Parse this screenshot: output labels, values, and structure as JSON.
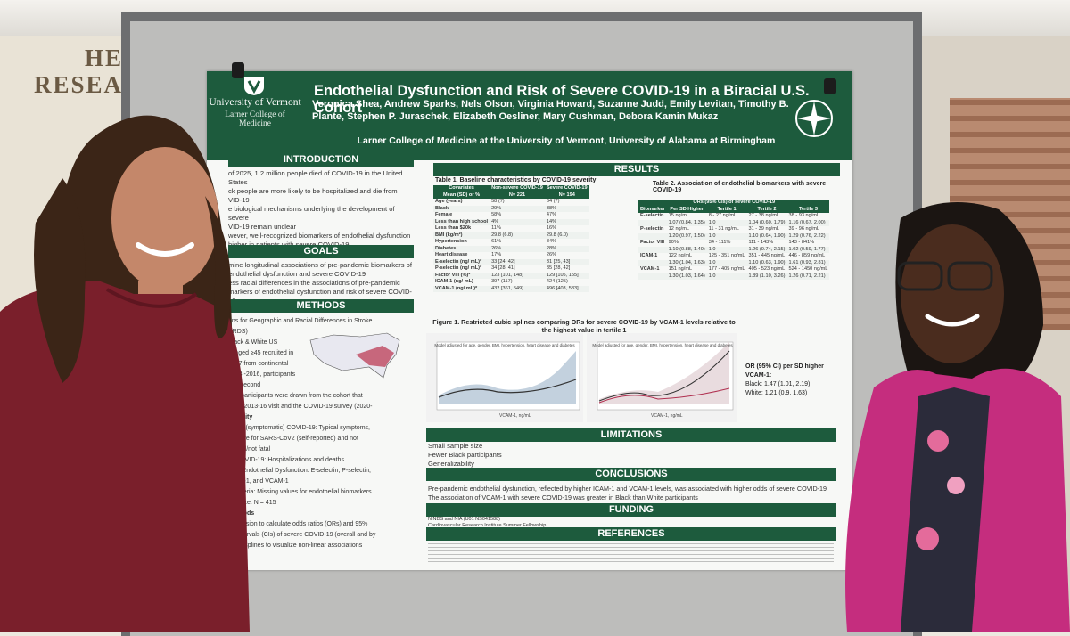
{
  "scene": {
    "wall_sign": "HE\nRESEA"
  },
  "poster": {
    "university": "University of Vermont",
    "college": "Larner College of Medicine",
    "title": "Endothelial Dysfunction and Risk of Severe COVID-19 in a Biracial U.S. Cohort",
    "authors": "Veronica Shea, Andrew Sparks, Nels Olson, Virginia Howard, Suzanne Judd, Emily Levitan, Timothy B. Plante, Stephen P. Juraschek, Elizabeth Oesliner, Mary Cushman, Debora Kamin Mukaz",
    "affiliation": "Larner College of Medicine at the University of Vermont, University of Alabama at Birmingham",
    "sections": {
      "introduction": "INTRODUCTION",
      "goals": "GOALS",
      "methods": "METHODS",
      "results": "RESULTS",
      "limitations": "LIMITATIONS",
      "conclusions": "CONCLUSIONS",
      "funding": "FUNDING",
      "references": "REFERENCES"
    },
    "intro_lines": [
      "of 2025, 1.2 million people died of COVID-19 in the United",
      "States",
      "ck people are more likely to be hospitalized and die from",
      "VID-19",
      "e biological mechanisms underlying the development of severe",
      "VID-19 remain unclear",
      "wever, well-recognized biomarkers of endothelial dysfunction",
      "higher in patients with severe COVID-19"
    ],
    "goals_lines": [
      "mine longitudinal associations of pre-pandemic biomarkers of",
      "endothelial dysfunction and severe COVID-19",
      "ess racial differences in the associations of pre-pandemic",
      "markers of endothelial dysfunction and risk of severe COVID-19"
    ],
    "methods_lines": [
      "ons for Geographic and Racial Differences in Stroke",
      "ARDS)",
      "Black & White US",
      "ts aged ≥45 recruited in",
      "2007 from continental",
      "2013 -2016, participants",
      "nt a second",
      "dy's participants were drawn from the cohort that",
      "d the 2013-16 visit and the COVID-19 survey (2020-",
      "Severity",
      "evere (symptomatic) COVID-19: Typical symptoms,",
      "positive for SARS-CoV2 (self-reported) and not",
      "talized/not fatal",
      "re COVID-19: Hospitalizations and deaths",
      "rs of Endothelial Dysfunction: E-selectin, P-selectin,",
      "ICAM-1, and VCAM-1",
      "n Criteria: Missing values for endothelial biomarkers",
      "ple Size: N = 415",
      "methods",
      "regression to calculate odds ratios (ORs) and 95%",
      "ce intervals (CIs) of severe COVID-19 (overall and by",
      "cubic splines to visualize non-linear associations"
    ],
    "table1": {
      "title": "Table 1. Baseline characteristics by COVID-19 severity",
      "headers": [
        "Covariates\nMean (SD) or %",
        "Non-severe COVID-19\nN= 221",
        "Severe COVID-19\nN= 194"
      ],
      "rows": [
        [
          "Age (years)",
          "58 (7)",
          "64 (7)"
        ],
        [
          "Black",
          "29%",
          "38%"
        ],
        [
          "Female",
          "58%",
          "47%"
        ],
        [
          "Less than high school",
          "4%",
          "14%"
        ],
        [
          "Less than $20k",
          "11%",
          "16%"
        ],
        [
          "BMI (kg/m²)",
          "29.8 (6.8)",
          "29.8 (6.0)"
        ],
        [
          "Hypertension",
          "61%",
          "84%"
        ],
        [
          "Diabetes",
          "26%",
          "28%"
        ],
        [
          "Heart disease",
          "17%",
          "26%"
        ],
        [
          "E-selectin (ng/ mL)*",
          "33 [24, 42]",
          "31 [25, 43]"
        ],
        [
          "P-selectin (ng/ mL)*",
          "34 [28, 41]",
          "35 [28, 42]"
        ],
        [
          "Factor VIII (%)*",
          "123 [101, 148]",
          "129 [105, 155]"
        ],
        [
          "ICAM-1 (ng/ mL)",
          "397 (117)",
          "424 (125)"
        ],
        [
          "VCAM-1 (ng/ mL)*",
          "432 [361, 549]",
          "496 [403, 583]"
        ]
      ]
    },
    "table2": {
      "title": "Table 2. Association of endothelial biomarkers with severe COVID-19",
      "group_header": "ORs (95% CIs) of severe COVID-19",
      "headers": [
        "Biomarker",
        "Per SD Higher",
        "Tertile 1",
        "Tertile 2",
        "Tertile 3"
      ],
      "rows": [
        [
          "E-selectin",
          "15 ng/mL",
          "8 - 27 ng/mL",
          "27 - 38 ng/mL",
          "38 - 93 ng/mL"
        ],
        [
          "",
          "1.07 (0.84, 1.35)",
          "1.0",
          "1.04 (0.60, 1.79)",
          "1.16 (0.67, 2.00)"
        ],
        [
          "P-selectin",
          "12 ng/mL",
          "11 - 31 ng/mL",
          "31 - 39 ng/mL",
          "39 - 96 ng/mL"
        ],
        [
          "",
          "1.20 (0.97, 1.50)",
          "1.0",
          "1.10 (0.64, 1.90)",
          "1.29 (0.76, 2.22)"
        ],
        [
          "Factor VIII",
          "90%",
          "34 - 111%",
          "111 - 143%",
          "143 - 841%"
        ],
        [
          "",
          "1.10 (0.88, 1.40)",
          "1.0",
          "1.26 (0.74, 2.15)",
          "1.02 (0.59, 1.77)"
        ],
        [
          "ICAM-1",
          "122 ng/mL",
          "125 - 351 ng/mL",
          "351 - 445 ng/mL",
          "446 - 859 ng/mL"
        ],
        [
          "",
          "1.30 (1.04, 1.63)",
          "1.0",
          "1.10 (0.63, 1.90)",
          "1.61 (0.93, 2.81)"
        ],
        [
          "VCAM-1",
          "151 ng/mL",
          "177 - 405 ng/mL",
          "405 - 523 ng/mL",
          "524 - 1450 ng/mL"
        ],
        [
          "",
          "1.30 (1.03, 1.64)",
          "1.0",
          "1.89 (1.10, 3.26)",
          "1.26 (0.71, 2.21)"
        ]
      ]
    },
    "figure1": {
      "title": "Figure 1. Restricted cubic splines comparing ORs for severe COVID-19 by VCAM-1 levels relative to the highest value in tertile 1",
      "panel_left": "Model adjusted for age, gender, BMI, hypertension, heart disease and diabetes",
      "panel_right": "Model adjusted for age, gender, BMI, hypertension, heart disease and diabetes",
      "xlabel": "VCAM-1, ng/mL",
      "or_title": "OR (95% CI) per SD higher VCAM-1:",
      "or_black": "Black: 1.47 (1.01, 2.19)",
      "or_white": "White: 1.21 (0.9, 1.63)"
    },
    "limitations": [
      "Small sample size",
      "Fewer Black participants",
      "Generalizability"
    ],
    "conclusions": [
      "Pre-pandemic endothelial dysfunction, reflected by higher ICAM-1 and VCAM-1 levels, was associated with higher odds of severe COVID-19",
      "The association of VCAM-1 with severe COVID-19 was greater in Black than White participants"
    ],
    "funding": [
      "NINDS and NIA (U01 NS041588)",
      "Cardiovascular Research Institute Summer Fellowship"
    ]
  },
  "colors": {
    "poster_green": "#1d5b3d",
    "dress_left": "#7a1f2b",
    "blazer_right": "#c52d7e"
  }
}
